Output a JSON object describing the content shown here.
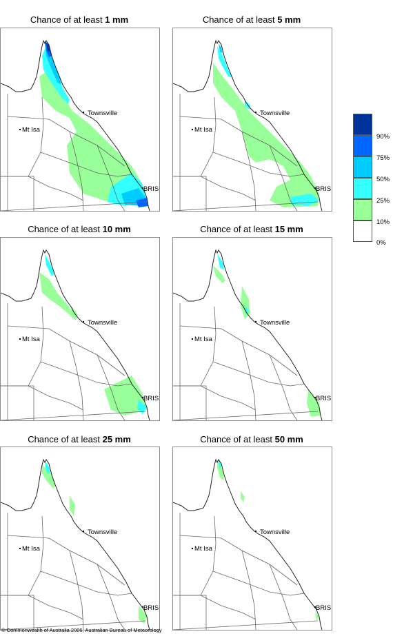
{
  "panels": [
    {
      "title_prefix": "Chance of at least ",
      "threshold": "1 mm"
    },
    {
      "title_prefix": "Chance of at least ",
      "threshold": "5 mm"
    },
    {
      "title_prefix": "Chance of at least ",
      "threshold": "10 mm"
    },
    {
      "title_prefix": "Chance of at least ",
      "threshold": "15 mm"
    },
    {
      "title_prefix": "Chance of at least ",
      "threshold": "25 mm"
    },
    {
      "title_prefix": "Chance of at least ",
      "threshold": "50 mm"
    }
  ],
  "places": {
    "townsville": "Townsville",
    "mount_isa": "Mt Isa",
    "brisbane": "BRIS"
  },
  "legend": {
    "ticks": [
      "90%",
      "75%",
      "50%",
      "25%",
      "10%",
      "0%"
    ],
    "colors": [
      "#003399",
      "#0066ff",
      "#00ccff",
      "#33ffff",
      "#99ff99",
      "#ffffff"
    ]
  },
  "footer": {
    "text": "Commonwealth of Australia 2006, Australian Bureau of Meteorology"
  }
}
